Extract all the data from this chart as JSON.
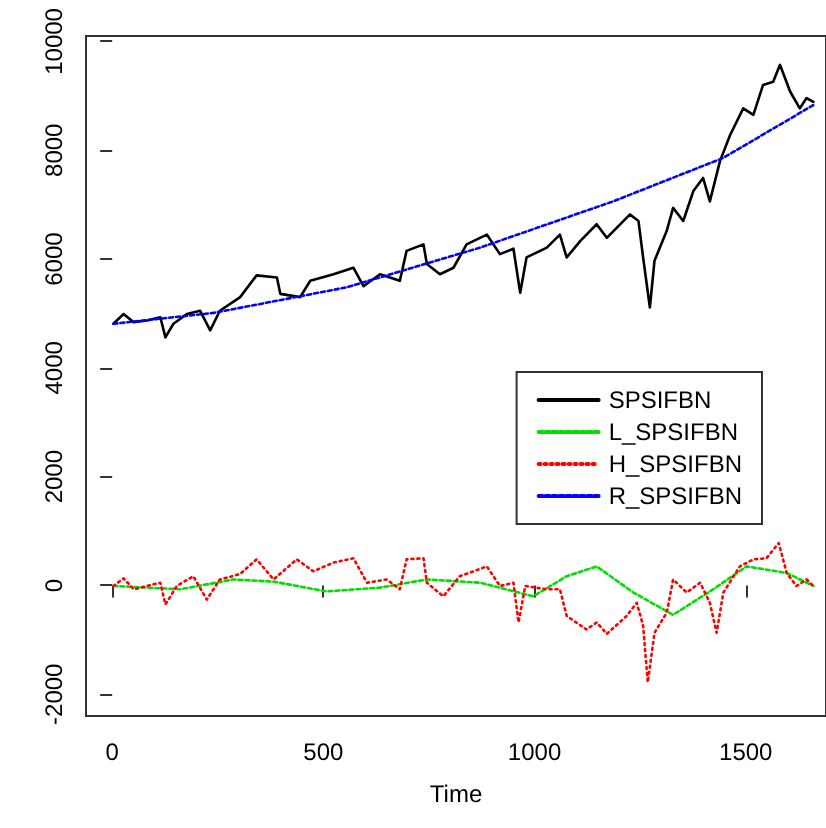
{
  "chart_data": {
    "type": "line",
    "xlabel": "Time",
    "xlim": [
      -62,
      1690
    ],
    "ylim": [
      -2400,
      10100
    ],
    "xticks": [
      0,
      500,
      1000,
      1500
    ],
    "yticks": [
      -2000,
      0,
      2000,
      4000,
      6000,
      8000,
      10000
    ],
    "grid": false,
    "legend": "right",
    "marker": "none",
    "series": [
      {
        "name": "SPSIFBN",
        "color": "#000000",
        "line_style": "solid",
        "x": [
          3,
          27,
          51,
          82,
          114,
          126,
          145,
          177,
          208,
          232,
          255,
          303,
          342,
          390,
          398,
          445,
          469,
          524,
          571,
          595,
          634,
          681,
          697,
          737,
          745,
          776,
          808,
          839,
          887,
          918,
          950,
          966,
          981,
          1029,
          1060,
          1076,
          1108,
          1147,
          1171,
          1226,
          1246,
          1257,
          1273,
          1284,
          1313,
          1328,
          1352,
          1376,
          1399,
          1415,
          1439,
          1463,
          1494,
          1518,
          1541,
          1565,
          1581,
          1605,
          1628,
          1644,
          1660
        ],
        "values": [
          4810,
          4990,
          4840,
          4870,
          4930,
          4560,
          4810,
          4990,
          5050,
          4690,
          5050,
          5300,
          5700,
          5660,
          5360,
          5300,
          5600,
          5720,
          5840,
          5500,
          5720,
          5600,
          6150,
          6270,
          5910,
          5720,
          5840,
          6270,
          6450,
          6090,
          6190,
          5380,
          6030,
          6210,
          6450,
          6030,
          6330,
          6640,
          6390,
          6820,
          6700,
          6030,
          5110,
          5970,
          6520,
          6940,
          6700,
          7250,
          7490,
          7060,
          7800,
          8280,
          8770,
          8650,
          9200,
          9260,
          9570,
          9080,
          8770,
          8960,
          8890
        ]
      },
      {
        "name": "L_SPSIFBN",
        "color": "#00dd00",
        "line_style": "dashed",
        "x": [
          3,
          82,
          161,
          287,
          382,
          508,
          634,
          745,
          871,
          997,
          1076,
          1147,
          1234,
          1328,
          1423,
          1502,
          1597,
          1660
        ],
        "values": [
          -10,
          -40,
          -70,
          110,
          70,
          -110,
          -40,
          110,
          50,
          -200,
          170,
          350,
          -130,
          -540,
          -70,
          350,
          230,
          -10
        ]
      },
      {
        "name": "H_SPSIFBN",
        "color": "#ff0000",
        "line_style": "dotted",
        "x": [
          3,
          27,
          51,
          82,
          114,
          126,
          153,
          192,
          224,
          255,
          303,
          342,
          382,
          437,
          476,
          524,
          571,
          603,
          650,
          681,
          697,
          737,
          745,
          784,
          823,
          887,
          918,
          950,
          962,
          978,
          1029,
          1060,
          1076,
          1123,
          1147,
          1171,
          1218,
          1242,
          1257,
          1268,
          1284,
          1313,
          1328,
          1360,
          1392,
          1415,
          1431,
          1447,
          1486,
          1518,
          1549,
          1578,
          1597,
          1620,
          1644,
          1660
        ],
        "values": [
          -10,
          130,
          -70,
          -10,
          50,
          -350,
          -10,
          170,
          -260,
          110,
          210,
          480,
          110,
          480,
          260,
          420,
          500,
          50,
          110,
          -70,
          480,
          500,
          50,
          -200,
          170,
          350,
          -10,
          50,
          -680,
          -10,
          -70,
          -70,
          -560,
          -810,
          -680,
          -890,
          -560,
          -320,
          -740,
          -1780,
          -870,
          -500,
          110,
          -130,
          50,
          -320,
          -870,
          -130,
          350,
          480,
          500,
          780,
          230,
          -10,
          110,
          -10
        ]
      },
      {
        "name": "R_SPSIFBN",
        "color": "#0000ff",
        "line_style": "dashed",
        "x": [
          3,
          240,
          555,
          871,
          1186,
          1447,
          1660
        ],
        "values": [
          4810,
          5010,
          5480,
          6210,
          7060,
          7860,
          8830
        ]
      }
    ]
  }
}
